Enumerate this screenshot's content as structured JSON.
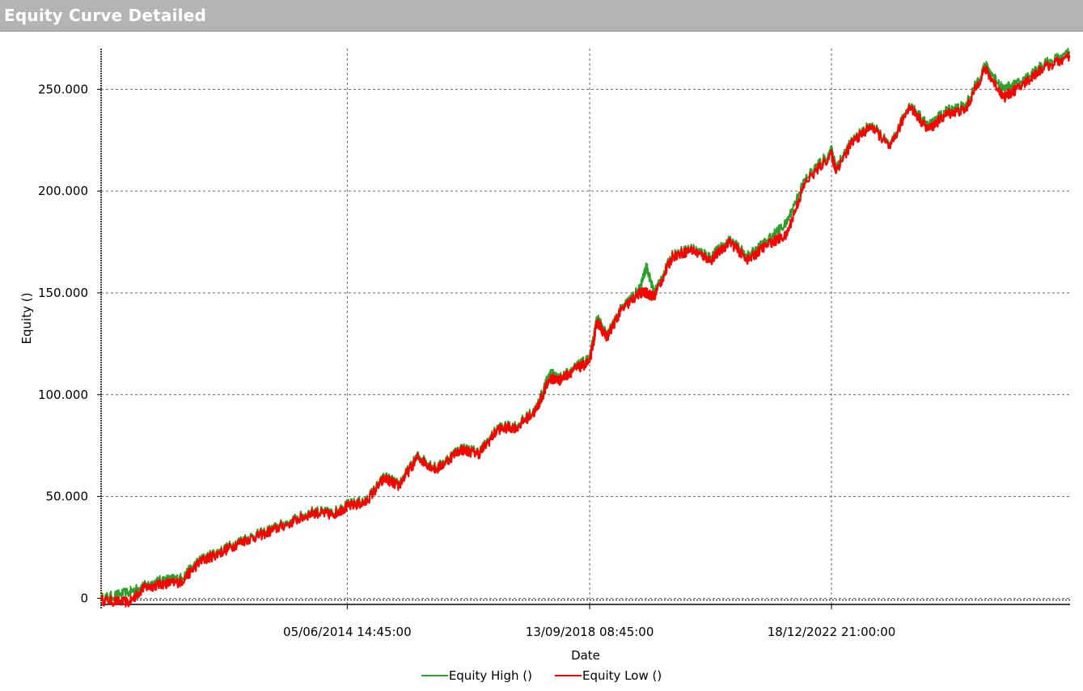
{
  "window": {
    "title": "Equity Curve Detailed"
  },
  "colors": {
    "equity_high": "#2ca02c",
    "equity_low": "#ff0000",
    "title_bar": "#b4b4b4",
    "grid": "#666666"
  },
  "chart_data": {
    "type": "line",
    "title": "",
    "xlabel": "Date",
    "ylabel": "Equity ()",
    "ylim": [
      -3000,
      270000
    ],
    "y_ticks": [
      0,
      50000,
      100000,
      150000,
      200000,
      250000
    ],
    "y_tick_labels": [
      "0",
      "50.000",
      "100.000",
      "150.000",
      "200.000",
      "250.000"
    ],
    "xlim": [
      "2010-02-01",
      "2027-03-03"
    ],
    "x_ticks": [
      "2014-06-05",
      "2018-09-13",
      "2022-12-18"
    ],
    "x_tick_labels": [
      "05/06/2014 14:45:00",
      "13/09/2018 08:45:00",
      "18/12/2022 21:00:00"
    ],
    "grid": true,
    "legend_position": "bottom",
    "series": [
      {
        "name": "Equity High ()",
        "color": "#2ca02c",
        "x": [
          "2010-02-01",
          "2010-08-01",
          "2010-11-01",
          "2011-03-01",
          "2011-07-01",
          "2011-11-01",
          "2012-03-01",
          "2012-08-01",
          "2013-01-01",
          "2013-06-01",
          "2013-11-01",
          "2014-03-01",
          "2014-06-05",
          "2014-10-01",
          "2015-02-01",
          "2015-05-01",
          "2015-09-01",
          "2016-01-01",
          "2016-06-01",
          "2016-10-01",
          "2017-02-01",
          "2017-06-01",
          "2017-10-01",
          "2018-01-01",
          "2018-03-01",
          "2018-06-01",
          "2018-09-13",
          "2018-11-01",
          "2019-01-01",
          "2019-04-01",
          "2019-08-01",
          "2019-09-15",
          "2019-11-01",
          "2020-03-01",
          "2020-07-01",
          "2020-11-01",
          "2021-03-01",
          "2021-07-01",
          "2021-11-01",
          "2022-03-01",
          "2022-07-01",
          "2022-12-18",
          "2023-01-15",
          "2023-05-01",
          "2023-09-01",
          "2024-01-01",
          "2024-05-01",
          "2024-09-01",
          "2025-01-01",
          "2025-05-01",
          "2025-09-01",
          "2026-01-01",
          "2026-05-01",
          "2026-09-01",
          "2027-03-03"
        ],
        "values": [
          0,
          3000,
          6000,
          9000,
          10000,
          19000,
          23000,
          29000,
          33000,
          38000,
          43000,
          42000,
          46000,
          48000,
          60000,
          56000,
          70000,
          64000,
          74000,
          72000,
          84000,
          85000,
          93000,
          111000,
          108000,
          113000,
          118000,
          138000,
          129000,
          142000,
          152000,
          163000,
          150000,
          169000,
          172000,
          168000,
          176000,
          168000,
          176000,
          184000,
          206000,
          220000,
          212000,
          225000,
          233000,
          222000,
          243000,
          232000,
          240000,
          242000,
          262000,
          250000,
          254000,
          262000,
          268000
        ]
      },
      {
        "name": "Equity Low ()",
        "color": "#ff0000",
        "x": [
          "2010-02-01",
          "2010-08-01",
          "2010-11-01",
          "2011-03-01",
          "2011-07-01",
          "2011-11-01",
          "2012-03-01",
          "2012-08-01",
          "2013-01-01",
          "2013-06-01",
          "2013-11-01",
          "2014-03-01",
          "2014-06-05",
          "2014-10-01",
          "2015-02-01",
          "2015-05-01",
          "2015-09-01",
          "2016-01-01",
          "2016-06-01",
          "2016-10-01",
          "2017-02-01",
          "2017-06-01",
          "2017-10-01",
          "2018-01-01",
          "2018-03-01",
          "2018-06-01",
          "2018-09-13",
          "2018-11-01",
          "2019-01-01",
          "2019-04-01",
          "2019-08-01",
          "2019-09-15",
          "2019-11-01",
          "2020-03-01",
          "2020-07-01",
          "2020-11-01",
          "2021-03-01",
          "2021-07-01",
          "2021-11-01",
          "2022-03-01",
          "2022-07-01",
          "2022-12-18",
          "2023-01-15",
          "2023-05-01",
          "2023-09-01",
          "2024-01-01",
          "2024-05-01",
          "2024-09-01",
          "2025-01-01",
          "2025-05-01",
          "2025-09-01",
          "2026-01-01",
          "2026-05-01",
          "2026-09-01",
          "2027-03-03"
        ],
        "values": [
          -1000,
          -2000,
          5000,
          7000,
          8000,
          18000,
          22000,
          28000,
          32000,
          37000,
          42000,
          41000,
          45000,
          47000,
          59000,
          55000,
          69000,
          63000,
          73000,
          71000,
          83000,
          84000,
          92000,
          108000,
          107000,
          112000,
          116000,
          136000,
          128000,
          141000,
          150000,
          150000,
          148000,
          168000,
          171000,
          166000,
          175000,
          166000,
          174000,
          178000,
          204000,
          218000,
          210000,
          224000,
          232000,
          221000,
          242000,
          230000,
          238000,
          240000,
          260000,
          246000,
          252000,
          260000,
          266000
        ]
      }
    ]
  }
}
